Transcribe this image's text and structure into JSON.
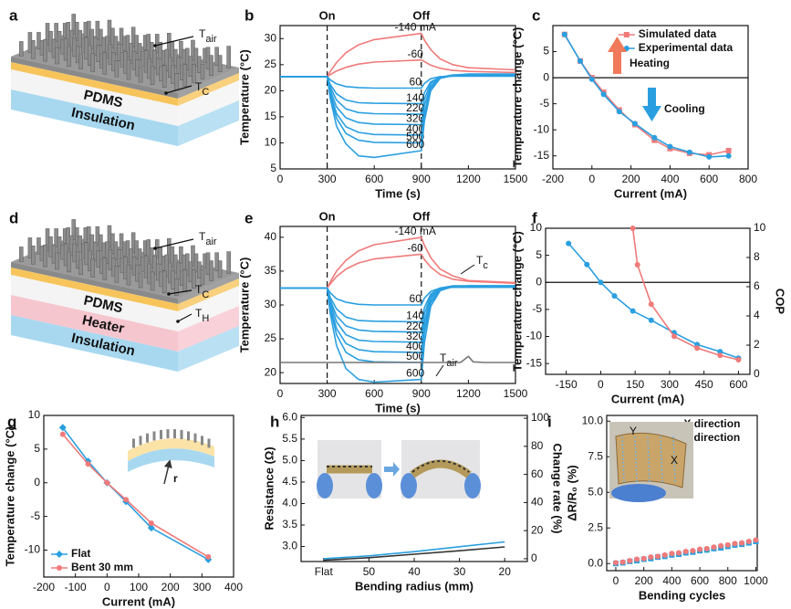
{
  "illustrations": [
    {
      "panel": "a",
      "layers": [
        "PDMS",
        "Insulation"
      ],
      "colors": [
        "#f4f4f4",
        "#a8d8f0"
      ],
      "labels": [
        {
          "main": "T",
          "sub": "air"
        },
        {
          "main": "T",
          "sub": "C"
        }
      ]
    },
    {
      "panel": "d",
      "layers": [
        "PDMS",
        "Heater",
        "Insulation"
      ],
      "colors": [
        "#f4f4f4",
        "#f6c6cf",
        "#a8d8f0"
      ],
      "labels": [
        {
          "main": "T",
          "sub": "air"
        },
        {
          "main": "T",
          "sub": "C"
        },
        {
          "main": "T",
          "sub": "H"
        }
      ]
    }
  ],
  "chart_data": [
    {
      "panel": "b",
      "type": "line",
      "xlabel": "Time (s)",
      "ylabel": "Temperature (°C)",
      "xlim": [
        0,
        1500
      ],
      "xticks": [
        0,
        300,
        600,
        900,
        1200,
        1500
      ],
      "ylim": [
        5,
        32.5
      ],
      "yticks": [
        5,
        10,
        15,
        20,
        25,
        30
      ],
      "legend": "inline",
      "annotations": [
        {
          "text": "On",
          "x": 300
        },
        {
          "text": "Off",
          "x": 900
        }
      ],
      "x": [
        0,
        300,
        320,
        360,
        420,
        500,
        600,
        900,
        920,
        960,
        1020,
        1100,
        1200,
        1500
      ],
      "series": [
        {
          "name": "-140 mA",
          "color": "#f07a7a",
          "values": [
            22.7,
            22.7,
            23.7,
            25.4,
            27.3,
            28.8,
            29.8,
            31,
            29.7,
            27.9,
            26.1,
            25.0,
            24.4,
            24.0
          ]
        },
        {
          "name": "-60",
          "color": "#f07a7a",
          "values": [
            22.7,
            22.7,
            23.1,
            23.8,
            24.5,
            25.1,
            25.5,
            25.9,
            25.6,
            24.9,
            24.3,
            23.9,
            23.7,
            23.5
          ]
        },
        {
          "name": "60",
          "color": "#2a9fe0",
          "values": [
            22.7,
            22.7,
            22.1,
            21.3,
            20.8,
            20.6,
            20.5,
            20.5,
            21.4,
            22.3,
            22.7,
            22.8,
            22.8,
            22.8
          ]
        },
        {
          "name": "140",
          "color": "#2a9fe0",
          "values": [
            22.7,
            22.7,
            21.2,
            19.4,
            18.2,
            17.7,
            17.6,
            17.5,
            19.6,
            21.7,
            22.6,
            22.9,
            22.9,
            22.9
          ]
        },
        {
          "name": "220",
          "color": "#2a9fe0",
          "values": [
            22.7,
            22.7,
            20.7,
            18.2,
            16.5,
            15.8,
            15.6,
            15.5,
            18.4,
            21.4,
            22.6,
            23,
            23,
            23
          ]
        },
        {
          "name": "320",
          "color": "#2a9fe0",
          "values": [
            22.7,
            22.7,
            20.1,
            16.9,
            14.8,
            13.9,
            13.6,
            13.5,
            17.2,
            20.9,
            22.5,
            22.9,
            23,
            23
          ]
        },
        {
          "name": "400",
          "color": "#2a9fe0",
          "values": [
            22.7,
            22.7,
            19.6,
            15.6,
            13.1,
            12,
            11.6,
            11.5,
            15.8,
            20.5,
            22.4,
            22.9,
            23,
            23
          ]
        },
        {
          "name": "500",
          "color": "#2a9fe0",
          "values": [
            22.7,
            22.7,
            19.1,
            14.7,
            11.8,
            10.5,
            10.1,
            10,
            15.1,
            20.1,
            22.4,
            22.9,
            23,
            23
          ]
        },
        {
          "name": "600",
          "color": "#2a9fe0",
          "values": [
            22.7,
            22.7,
            18.5,
            13.2,
            9.8,
            7.5,
            7.2,
            8.5,
            14.2,
            20,
            22.4,
            23,
            23.2,
            23.2
          ]
        }
      ]
    },
    {
      "panel": "c",
      "type": "line",
      "xlabel": "Current (mA)",
      "ylabel": "Temperature change (°C)",
      "xlim": [
        -200,
        800
      ],
      "xticks": [
        -200,
        0,
        200,
        400,
        600,
        800
      ],
      "ylim": [
        -17.5,
        10
      ],
      "yticks": [
        -15,
        -10,
        -5,
        0,
        5
      ],
      "legend": "upper right",
      "hline": 0,
      "notes": [
        "Heating",
        "Cooling"
      ],
      "x": [
        -140,
        -60,
        0,
        60,
        140,
        220,
        320,
        400,
        500,
        600,
        700
      ],
      "series": [
        {
          "name": "Simulated data",
          "color": "#f07a7a",
          "marker": "square",
          "values": [
            8.3,
            3.2,
            0,
            -2.8,
            -6.2,
            -9,
            -12,
            -13.6,
            -14.5,
            -14.8,
            -14
          ]
        },
        {
          "name": "Experimental data",
          "color": "#2a9fe0",
          "marker": "circle",
          "values": [
            8.3,
            3.2,
            -0.3,
            -3.2,
            -6.5,
            -8.8,
            -11.5,
            -13.2,
            -14.3,
            -15.2,
            -15
          ]
        }
      ]
    },
    {
      "panel": "e",
      "type": "line",
      "xlabel": "Time (s)",
      "ylabel": "Temperature (°C)",
      "xlim": [
        0,
        1500
      ],
      "xticks": [
        0,
        300,
        600,
        900,
        1200,
        1500
      ],
      "ylim": [
        18.4,
        41.6
      ],
      "yticks": [
        20,
        25,
        30,
        35,
        40
      ],
      "legend": "inline",
      "annotations": [
        {
          "text": "On",
          "x": 300
        },
        {
          "text": "Off",
          "x": 900
        }
      ],
      "callouts": [
        {
          "main": "T",
          "sub": "c"
        },
        {
          "main": "T",
          "sub": "air"
        }
      ],
      "x": [
        0,
        300,
        320,
        360,
        420,
        500,
        600,
        900,
        920,
        960,
        1020,
        1100,
        1200,
        1500
      ],
      "series": [
        {
          "name": "-140 mA",
          "color": "#f07a7a",
          "values": [
            32.5,
            32.5,
            33.4,
            35.0,
            36.6,
            38.0,
            38.9,
            40.0,
            38.8,
            37.0,
            35.3,
            34.3,
            33.6,
            33.3
          ]
        },
        {
          "name": "-60",
          "color": "#f07a7a",
          "values": [
            32.5,
            32.5,
            33.1,
            34.2,
            35.3,
            36.2,
            36.8,
            37.5,
            36.7,
            35.6,
            34.5,
            33.8,
            33.5,
            33.2
          ]
        },
        {
          "name": "60",
          "color": "#2a9fe0",
          "values": [
            32.5,
            32.5,
            31.8,
            30.9,
            30.4,
            30.1,
            30.0,
            30.0,
            31.0,
            32.0,
            32.5,
            32.6,
            32.6,
            32.6
          ]
        },
        {
          "name": "140",
          "color": "#2a9fe0",
          "values": [
            32.5,
            32.5,
            31.1,
            29.4,
            28.2,
            27.7,
            27.6,
            27.5,
            29.6,
            31.6,
            32.5,
            32.8,
            32.8,
            32.8
          ]
        },
        {
          "name": "220",
          "color": "#2a9fe0",
          "values": [
            32.5,
            32.5,
            30.7,
            28.4,
            26.9,
            26.3,
            26.1,
            26.0,
            28.7,
            31.3,
            32.5,
            32.8,
            32.8,
            32.8
          ]
        },
        {
          "name": "320",
          "color": "#2a9fe0",
          "values": [
            32.5,
            32.5,
            30.3,
            27.5,
            25.6,
            24.8,
            24.6,
            24.5,
            27.7,
            31.0,
            32.4,
            32.8,
            32.8,
            32.8
          ]
        },
        {
          "name": "400",
          "color": "#2a9fe0",
          "values": [
            32.5,
            32.5,
            29.8,
            26.5,
            24.3,
            23.4,
            23.1,
            23.0,
            26.8,
            30.6,
            32.3,
            32.7,
            32.8,
            32.8
          ]
        },
        {
          "name": "500",
          "color": "#2a9fe0",
          "values": [
            32.5,
            32.5,
            29.4,
            25.6,
            23.0,
            21.9,
            21.6,
            21.5,
            25.9,
            30.3,
            32.2,
            32.7,
            32.8,
            32.8
          ]
        },
        {
          "name": "600",
          "color": "#2a9fe0",
          "values": [
            32.5,
            32.5,
            28.7,
            24.0,
            20.6,
            19.0,
            18.6,
            19.0,
            24.4,
            29.8,
            32.1,
            32.7,
            32.8,
            32.8
          ]
        },
        {
          "color": "#777777",
          "x": [
            0,
            300,
            600,
            900,
            1150,
            1200,
            1230,
            1300,
            1500
          ],
          "values": [
            21.5,
            21.5,
            21.5,
            21.5,
            21.5,
            22.4,
            21.6,
            21.5,
            21.5
          ]
        }
      ]
    },
    {
      "panel": "f",
      "type": "line",
      "xlabel": "Current (mA)",
      "ylabel": "Temperature change (°C)",
      "y2label": "COP",
      "y2label_color": "#f07a7a",
      "xlim": [
        -240,
        650
      ],
      "xticks": [
        -150,
        0,
        150,
        300,
        450,
        600
      ],
      "ylim": [
        -17,
        10
      ],
      "yticks": [
        -15,
        -10,
        -5,
        0,
        5,
        10
      ],
      "y2lim": [
        0,
        10
      ],
      "y2ticks": [
        0,
        2,
        4,
        6,
        8,
        10
      ],
      "hline": 0,
      "series": [
        {
          "color": "#2a9fe0",
          "marker": "circle",
          "x": [
            -140,
            -60,
            0,
            60,
            140,
            220,
            320,
            420,
            520,
            600
          ],
          "values": [
            7.2,
            3.3,
            0,
            -2.5,
            -5.3,
            -7,
            -9.3,
            -11.5,
            -12.8,
            -14
          ]
        },
        {
          "color": "#f07a7a",
          "marker": "circle",
          "axis": "y2",
          "x": [
            140,
            160,
            220,
            320,
            420,
            520,
            600
          ],
          "values": [
            10,
            7.5,
            4.8,
            2.6,
            1.8,
            1.3,
            1.0
          ]
        }
      ]
    },
    {
      "panel": "g",
      "type": "line",
      "xlabel": "Current (mA)",
      "ylabel": "Temperature change (°C)",
      "xlim": [
        -200,
        400
      ],
      "xticks": [
        -200,
        -100,
        0,
        100,
        200,
        300,
        400
      ],
      "ylim": [
        -14,
        10
      ],
      "yticks": [
        -10,
        -5,
        0,
        5,
        10
      ],
      "legend": "lower left",
      "inset_label": "r",
      "x": [
        -140,
        -60,
        0,
        60,
        140,
        320
      ],
      "series": [
        {
          "name": "Flat",
          "color": "#2a9fe0",
          "marker": "diamond",
          "values": [
            8.2,
            3.2,
            0,
            -2.8,
            -6.7,
            -11.4
          ]
        },
        {
          "name": "Bent 30 mm",
          "color": "#f07a7a",
          "marker": "circle",
          "values": [
            7.2,
            2.8,
            0,
            -2.5,
            -6,
            -11
          ]
        }
      ]
    },
    {
      "panel": "h",
      "type": "line",
      "xlabel": "Bending radius (mm)",
      "ylabel": "Resistance (Ω)",
      "ylabel_color": "#f05a5a",
      "y2label": "Change rate (%)",
      "y2label_color": "#2a9fe0",
      "categories": [
        "Flat",
        "50",
        "40",
        "30",
        "20"
      ],
      "ylim": [
        2.65,
        6.05
      ],
      "yticks": [
        {
          "value": 3,
          "label": "3.0"
        },
        3.5,
        {
          "value": 4,
          "label": "4.0"
        },
        4.5,
        {
          "value": 5,
          "label": "5.0"
        },
        5.5,
        {
          "value": 6,
          "label": "6.0"
        }
      ],
      "y2lim": [
        -2,
        102
      ],
      "y2ticks": [
        0,
        20,
        40,
        60,
        80,
        100
      ],
      "series": [
        {
          "color": "#333333",
          "values": [
            2.68,
            2.74,
            2.82,
            2.9,
            2.99
          ]
        },
        {
          "color": "#2a9fe0",
          "axis": "y2",
          "values": [
            0,
            2,
            5,
            8.5,
            12
          ]
        }
      ]
    },
    {
      "panel": "i",
      "type": "scatter",
      "xlabel": "Bending cycles",
      "ylabel": "ΔR/R₀ (%)",
      "xlim": [
        -65,
        1010
      ],
      "xticks": [
        0,
        200,
        400,
        600,
        800,
        1000
      ],
      "ylim": [
        -0.5,
        10.4
      ],
      "yticks": [
        {
          "value": 0,
          "label": "0.0"
        },
        2.5,
        {
          "value": 5,
          "label": "5.0"
        },
        7.5,
        {
          "value": 10,
          "label": "10.0"
        }
      ],
      "legend": "upper right",
      "photo_labels": [
        "Y",
        "X"
      ],
      "x": [
        0,
        50,
        100,
        150,
        200,
        250,
        300,
        350,
        400,
        450,
        500,
        550,
        600,
        650,
        700,
        750,
        800,
        850,
        900,
        950,
        1000
      ],
      "series": [
        {
          "name": "X direction",
          "color": "#2a9fe0",
          "marker": "square",
          "values": [
            0,
            0.05,
            0.15,
            0.2,
            0.3,
            0.35,
            0.45,
            0.5,
            0.6,
            0.65,
            0.75,
            0.8,
            0.9,
            0.95,
            1.05,
            1.1,
            1.2,
            1.3,
            1.35,
            1.45,
            1.55
          ]
        },
        {
          "name": "Y direction",
          "color": "#f07a7a",
          "marker": "circle",
          "values": [
            0.05,
            0.1,
            0.2,
            0.3,
            0.35,
            0.45,
            0.5,
            0.6,
            0.7,
            0.75,
            0.85,
            0.9,
            1.0,
            1.05,
            1.15,
            1.25,
            1.3,
            1.4,
            1.45,
            1.55,
            1.65
          ]
        }
      ]
    }
  ]
}
